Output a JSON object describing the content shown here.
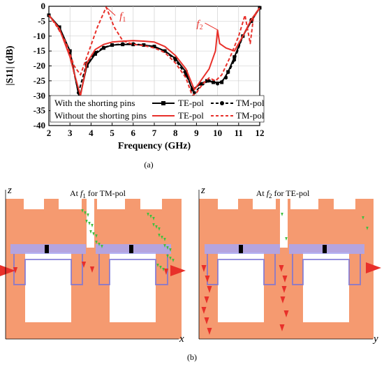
{
  "chart_data": {
    "type": "line",
    "xlabel": "Frequency (GHz)",
    "ylabel": "|S11| (dB)",
    "xlim": [
      2,
      12
    ],
    "ylim": [
      -40,
      0
    ],
    "xticks": [
      "2",
      "3",
      "4",
      "5",
      "6",
      "7",
      "8",
      "9",
      "10",
      "11",
      "12"
    ],
    "yticks": [
      "0",
      "-5",
      "-10",
      "-15",
      "-20",
      "-25",
      "-30",
      "-35",
      "-40"
    ],
    "legend": {
      "placement": "bottom-left",
      "group1": "With the shorting pins",
      "group2": "Without the shorting pins",
      "te": "TE-pol",
      "tm": "TM-pol"
    },
    "annotations": [
      {
        "label": "f1",
        "main": "f",
        "sub": "1",
        "x": 4.72,
        "y": -0.3
      },
      {
        "label": "f2",
        "main": "f",
        "sub": "2",
        "x": 10.02,
        "y": -8.0
      }
    ],
    "series": [
      {
        "name": "TE-pol",
        "group": "With the shorting pins",
        "color": "#000000",
        "style": "solid-square",
        "x": [
          2,
          2.5,
          3.0,
          3.45,
          3.8,
          4.2,
          4.6,
          5.0,
          5.5,
          6.0,
          6.5,
          7.0,
          7.5,
          8.0,
          8.5,
          8.8,
          9.2,
          9.5,
          9.8,
          10.2,
          10.5,
          10.8,
          11.2,
          11.6,
          12
        ],
        "y": [
          -3,
          -7,
          -15,
          -31,
          -20,
          -16,
          -14,
          -13,
          -12.8,
          -12.8,
          -13,
          -13.5,
          -15,
          -17.5,
          -22,
          -28,
          -26,
          -25,
          -25.5,
          -25.5,
          -22,
          -17,
          -10,
          -5,
          -0.5
        ]
      },
      {
        "name": "TM-pol",
        "group": "With the shorting pins",
        "color": "#000000",
        "style": "dashed-circle",
        "x": [
          2,
          2.5,
          3.0,
          3.4,
          3.8,
          4.2,
          4.6,
          5.0,
          5.5,
          6.0,
          6.5,
          7.0,
          7.5,
          8.0,
          8.5,
          8.9,
          9.3,
          9.6,
          10.0,
          10.4,
          10.8,
          11.2,
          11.6,
          12
        ],
        "y": [
          -3,
          -7.5,
          -16,
          -29,
          -19,
          -15.5,
          -13.8,
          -13,
          -12.6,
          -12.6,
          -13,
          -13.5,
          -15,
          -18,
          -23,
          -29,
          -26,
          -25,
          -26,
          -24,
          -18,
          -10,
          -4.5,
          -0.5
        ]
      },
      {
        "name": "TE-pol",
        "group": "Without the shorting pins",
        "color": "#e8302a",
        "style": "solid",
        "x": [
          2,
          2.5,
          3.0,
          3.3,
          3.5,
          3.8,
          4.2,
          4.6,
          5.0,
          5.5,
          6.0,
          6.5,
          7.0,
          7.5,
          8.0,
          8.5,
          8.9,
          9.3,
          9.6,
          9.9,
          10.0,
          10.1,
          10.4,
          10.8,
          11.2,
          11.6,
          12
        ],
        "y": [
          -3,
          -7.5,
          -17,
          -25,
          -30,
          -19,
          -14.5,
          -12.8,
          -12,
          -11.7,
          -11.5,
          -11.7,
          -12,
          -13.5,
          -16.5,
          -21,
          -28,
          -24,
          -21,
          -15,
          -8,
          -12.5,
          -14,
          -15,
          -10,
          -4.5,
          -0.5
        ]
      },
      {
        "name": "TM-pol",
        "group": "Without the shorting pins",
        "color": "#e8302a",
        "style": "dashed",
        "x": [
          2,
          2.4,
          2.8,
          3.2,
          3.5,
          3.9,
          4.3,
          4.72,
          5.1,
          5.5,
          6.0,
          6.5,
          7.0,
          7.5,
          8.0,
          8.5,
          8.8,
          9.0,
          9.3,
          9.6,
          9.9,
          10.2,
          10.6,
          11.0,
          11.3,
          11.55,
          11.7,
          12
        ],
        "y": [
          -3,
          -7,
          -12,
          -20,
          -23,
          -15,
          -7,
          -0.3,
          -7,
          -11.5,
          -12.8,
          -13.2,
          -14,
          -15.5,
          -19,
          -24,
          -30,
          -29,
          -26,
          -24,
          -25,
          -23,
          -17,
          -10,
          -3,
          -12.5,
          -4,
          -0.5
        ]
      }
    ]
  },
  "caption_a": "(a)",
  "caption_b": "(b)",
  "field_panel_1": {
    "title_prefix": "At",
    "f_main": "f",
    "f_sub": "1",
    "title_suffix": "for TM-pol",
    "vert_axis": "z",
    "horiz_axis": "x"
  },
  "field_panel_2": {
    "title_prefix": "At",
    "f_main": "f",
    "f_sub": "2",
    "title_suffix": "for TE-pol",
    "vert_axis": "z",
    "horiz_axis": "y"
  },
  "colors": {
    "metal": "#f59a70",
    "patch": "#a8a6f2",
    "patch_edge": "#7b74d6",
    "red": "#e8302a",
    "arrow_green": "#3fbf3f"
  }
}
